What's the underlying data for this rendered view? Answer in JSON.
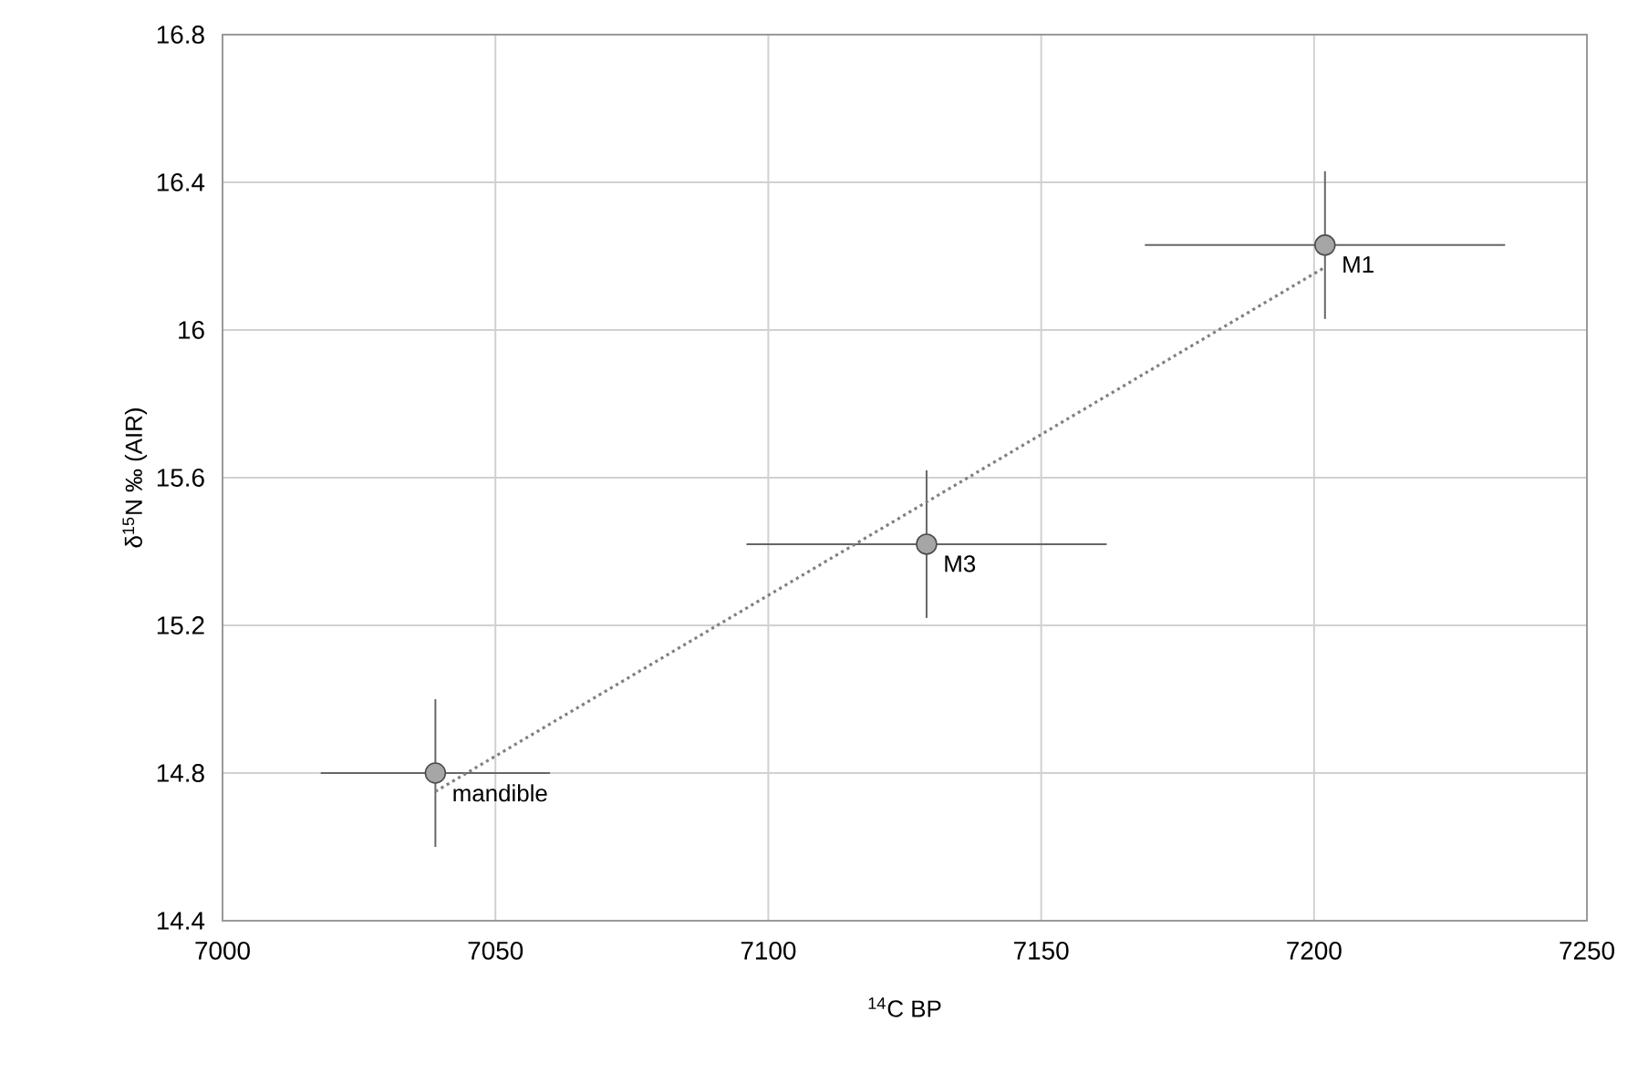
{
  "chart_data": {
    "type": "scatter",
    "xlabel": "$^{14}$C BP",
    "ylabel": "δ$^{15}$N ‰ (AIR)",
    "series": [
      {
        "color": "#a6a6a6",
        "x": [
          7039,
          7129,
          7202
        ],
        "values": [
          14.8,
          15.42,
          16.23
        ],
        "errors": [
          0.2,
          0.2,
          0.2
        ],
        "xerrors": [
          21,
          33,
          33
        ],
        "marker": "circle"
      },
      {
        "type": "line",
        "color": "#808080",
        "x": [
          7039,
          7202
        ],
        "values": [
          14.75,
          16.17
        ],
        "line_style": "dotted",
        "marker": "none"
      }
    ],
    "annotations": [
      {
        "text": "mandible",
        "x": 7039,
        "y": 14.8
      },
      {
        "text": "M3",
        "x": 7129,
        "y": 15.42
      },
      {
        "text": "M1",
        "x": 7202,
        "y": 16.23
      }
    ],
    "xlim": [
      7000,
      7250
    ],
    "xticks": [
      7000,
      7050,
      7100,
      7150,
      7200,
      7250
    ],
    "ylim": [
      14.4,
      16.8
    ],
    "yticks": [
      14.4,
      14.8,
      15.2,
      15.6,
      16,
      16.4,
      16.8
    ],
    "grid": true
  }
}
